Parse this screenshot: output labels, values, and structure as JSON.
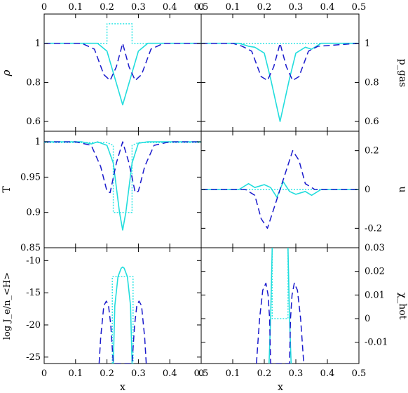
{
  "chart_data": [
    {
      "type": "line",
      "position": "top-left",
      "xlim": [
        0,
        0.5
      ],
      "ylim": [
        0.55,
        1.15
      ],
      "ylabel": "ρ",
      "x_ticks": [
        0,
        0.1,
        0.2,
        0.3,
        0.4,
        0.5
      ],
      "x_tick_labels": [
        "0",
        "0.1",
        "0.2",
        "0.3",
        "0.4",
        "0.5"
      ],
      "y_ticks": [
        0.6,
        0.8,
        1.0
      ],
      "y_tick_labels": [
        "0.6",
        "0.8",
        "1"
      ],
      "series": [
        {
          "style": "dotted",
          "color": "#33e6e6",
          "x": [
            0,
            0.2,
            0.2,
            0.28,
            0.28,
            0.5
          ],
          "y": [
            1.0,
            1.0,
            1.1,
            1.1,
            1.0,
            1.0
          ]
        },
        {
          "style": "solid",
          "color": "#22dddd",
          "x": [
            0,
            0.12,
            0.17,
            0.2,
            0.22,
            0.25,
            0.28,
            0.3,
            0.33,
            0.38,
            0.5
          ],
          "y": [
            1.0,
            1.0,
            1.0,
            0.96,
            0.85,
            0.685,
            0.85,
            0.96,
            1.0,
            1.0,
            1.0
          ]
        },
        {
          "style": "dashed",
          "color": "#1a1acc",
          "x": [
            0,
            0.12,
            0.16,
            0.19,
            0.21,
            0.23,
            0.25,
            0.27,
            0.29,
            0.31,
            0.34,
            0.38,
            0.5
          ],
          "y": [
            1.0,
            1.0,
            0.97,
            0.84,
            0.81,
            0.88,
            1.0,
            0.88,
            0.81,
            0.84,
            0.97,
            1.0,
            1.0
          ]
        }
      ]
    },
    {
      "type": "line",
      "position": "top-right",
      "xlim": [
        0,
        0.5
      ],
      "ylim": [
        0.55,
        1.15
      ],
      "ylabel": "p_gas",
      "x_ticks": [
        0,
        0.1,
        0.2,
        0.3,
        0.4,
        0.5
      ],
      "x_tick_labels": [
        "0",
        "0.1",
        "0.2",
        "0.3",
        "0.4",
        "0.5"
      ],
      "y_ticks": [
        0.6,
        0.8,
        1.0
      ],
      "y_tick_labels": [
        "0.6",
        "0.8",
        "1"
      ],
      "series": [
        {
          "style": "dotted",
          "color": "#33e6e6",
          "x": [
            0,
            0.5
          ],
          "y": [
            1.0,
            1.0
          ]
        },
        {
          "style": "solid",
          "color": "#22dddd",
          "x": [
            0,
            0.12,
            0.15,
            0.17,
            0.2,
            0.22,
            0.25,
            0.28,
            0.3,
            0.33,
            0.35,
            0.38,
            0.5
          ],
          "y": [
            1.0,
            1.0,
            0.985,
            0.98,
            0.95,
            0.82,
            0.6,
            0.82,
            0.95,
            0.98,
            0.97,
            1.0,
            1.0
          ]
        },
        {
          "style": "dashed",
          "color": "#1a1acc",
          "x": [
            0,
            0.1,
            0.13,
            0.16,
            0.19,
            0.21,
            0.23,
            0.25,
            0.27,
            0.29,
            0.31,
            0.34,
            0.37,
            0.5
          ],
          "y": [
            1.0,
            1.0,
            0.985,
            0.96,
            0.83,
            0.81,
            0.88,
            1.0,
            0.88,
            0.81,
            0.83,
            0.96,
            0.985,
            1.0
          ]
        }
      ]
    },
    {
      "type": "line",
      "position": "middle-left",
      "xlim": [
        0,
        0.5
      ],
      "ylim": [
        0.85,
        1.015
      ],
      "ylabel": "T",
      "x_ticks": [
        0,
        0.1,
        0.2,
        0.3,
        0.4,
        0.5
      ],
      "y_ticks": [
        0.85,
        0.9,
        0.95,
        1.0
      ],
      "y_tick_labels": [
        "0.85",
        "0.9",
        "0.95",
        "1"
      ],
      "series": [
        {
          "style": "dotted",
          "color": "#33e6e6",
          "x": [
            0,
            0.2,
            0.22,
            0.22,
            0.28,
            0.28,
            0.3,
            0.5
          ],
          "y": [
            0.999,
            0.999,
            0.995,
            0.9,
            0.9,
            0.995,
            0.999,
            0.999
          ]
        },
        {
          "style": "solid",
          "color": "#22dddd",
          "x": [
            0,
            0.12,
            0.15,
            0.17,
            0.2,
            0.22,
            0.24,
            0.25,
            0.26,
            0.28,
            0.3,
            0.33,
            0.38,
            0.5
          ],
          "y": [
            1.0,
            1.0,
            0.997,
            1.0,
            0.995,
            0.97,
            0.9,
            0.875,
            0.9,
            0.97,
            0.998,
            1.0,
            1.0,
            1.0
          ]
        },
        {
          "style": "dashed",
          "color": "#1a1acc",
          "x": [
            0,
            0.1,
            0.15,
            0.18,
            0.2,
            0.21,
            0.23,
            0.25,
            0.27,
            0.29,
            0.3,
            0.32,
            0.35,
            0.4,
            0.5
          ],
          "y": [
            1.0,
            1.0,
            0.995,
            0.965,
            0.93,
            0.928,
            0.97,
            1.0,
            0.97,
            0.928,
            0.93,
            0.965,
            0.995,
            1.0,
            1.0
          ]
        }
      ]
    },
    {
      "type": "line",
      "position": "middle-right",
      "xlim": [
        0,
        0.5
      ],
      "ylim": [
        -0.3,
        0.3
      ],
      "ylabel": "u",
      "x_ticks": [
        0,
        0.1,
        0.2,
        0.3,
        0.4,
        0.5
      ],
      "y_ticks": [
        -0.2,
        0,
        0.2
      ],
      "y_tick_labels": [
        "-0.2",
        "0",
        "0.2"
      ],
      "series": [
        {
          "style": "dotted",
          "color": "#33e6e6",
          "x": [
            0,
            0.5
          ],
          "y": [
            0,
            0
          ]
        },
        {
          "style": "solid",
          "color": "#22dddd",
          "x": [
            0,
            0.12,
            0.15,
            0.17,
            0.2,
            0.22,
            0.24,
            0.25,
            0.26,
            0.28,
            0.3,
            0.33,
            0.35,
            0.38,
            0.5
          ],
          "y": [
            0,
            0,
            0.03,
            0.01,
            0.025,
            0.01,
            -0.04,
            0,
            0.04,
            -0.01,
            -0.025,
            -0.01,
            -0.03,
            0,
            0
          ]
        },
        {
          "style": "dashed",
          "color": "#1a1acc",
          "x": [
            0,
            0.14,
            0.17,
            0.19,
            0.21,
            0.23,
            0.25,
            0.27,
            0.29,
            0.31,
            0.33,
            0.36,
            0.5
          ],
          "y": [
            0,
            0,
            -0.03,
            -0.15,
            -0.2,
            -0.1,
            0,
            0.1,
            0.2,
            0.15,
            0.03,
            0,
            0
          ]
        }
      ]
    },
    {
      "type": "line",
      "position": "bottom-left",
      "xlim": [
        0,
        0.5
      ],
      "ylim": [
        -26,
        -8
      ],
      "xlabel": "x",
      "ylabel": "log J_e/n_<H>",
      "x_ticks": [
        0,
        0.1,
        0.2,
        0.3,
        0.4,
        0.5
      ],
      "x_tick_labels": [
        "0",
        "0.1",
        "0.2",
        "0.3",
        "0.4",
        "0.5"
      ],
      "y_ticks": [
        -25,
        -20,
        -15,
        -10
      ],
      "y_tick_labels": [
        "-25",
        "-20",
        "-15",
        "-10"
      ],
      "series": [
        {
          "style": "dotted",
          "color": "#33e6e6",
          "x": [
            0.217,
            0.217,
            0.283,
            0.283
          ],
          "y": [
            -26,
            -12.5,
            -12.5,
            -26
          ]
        },
        {
          "style": "solid",
          "color": "#22dddd",
          "x": [
            0.22,
            0.225,
            0.235,
            0.245,
            0.25,
            0.255,
            0.265,
            0.275,
            0.28
          ],
          "y": [
            -26,
            -17,
            -12.5,
            -11.2,
            -11,
            -11.2,
            -12.5,
            -17,
            -26
          ]
        },
        {
          "style": "dashed",
          "color": "#1a1acc",
          "x": [
            0.175,
            0.18,
            0.19,
            0.198,
            0.205,
            0.212,
            0.22,
            0.228,
            0.272,
            0.28,
            0.288,
            0.295,
            0.302,
            0.31,
            0.32,
            0.325
          ],
          "y": [
            -26,
            -22,
            -17,
            -16.3,
            -17,
            -20,
            -26,
            -26,
            -26,
            -26,
            -20,
            -17,
            -16.3,
            -17,
            -22,
            -26
          ]
        }
      ]
    },
    {
      "type": "line",
      "position": "bottom-right",
      "xlim": [
        0,
        0.5
      ],
      "ylim": [
        -0.019,
        0.03
      ],
      "xlabel": "x",
      "ylabel": "χ_hot",
      "x_ticks": [
        0,
        0.1,
        0.2,
        0.3,
        0.4,
        0.5
      ],
      "x_tick_labels": [
        "0",
        "0.1",
        "0.2",
        "0.3",
        "0.4",
        "0.5"
      ],
      "y_ticks": [
        -0.01,
        0,
        0.01,
        0.02,
        0.03
      ],
      "y_tick_labels": [
        "-0.01",
        "0",
        "0.01",
        "0.02",
        "0.03"
      ],
      "series": [
        {
          "style": "dotted",
          "color": "#33e6e6",
          "x": [
            0.225,
            0.225,
            0.275,
            0.275
          ],
          "y": [
            0.03,
            0,
            0,
            0.03
          ]
        },
        {
          "style": "solid",
          "color": "#22dddd",
          "x": [
            0.215,
            0.22,
            0.225,
            0.23,
            0.235,
            0.265,
            0.27,
            0.275,
            0.28,
            0.285
          ],
          "y": [
            -0.019,
            0.0,
            0.03,
            0.031,
            0.031,
            0.031,
            0.031,
            0.03,
            0.0,
            -0.019
          ]
        },
        {
          "style": "dashed",
          "color": "#1a1acc",
          "x": [
            0.175,
            0.185,
            0.195,
            0.205,
            0.212,
            0.217,
            0.22,
            0.28,
            0.283,
            0.288,
            0.295,
            0.305,
            0.315,
            0.325
          ],
          "y": [
            -0.019,
            0.0,
            0.012,
            0.015,
            0.01,
            0.0,
            -0.019,
            -0.019,
            0.0,
            0.01,
            0.015,
            0.012,
            0.0,
            -0.019
          ]
        }
      ]
    }
  ]
}
